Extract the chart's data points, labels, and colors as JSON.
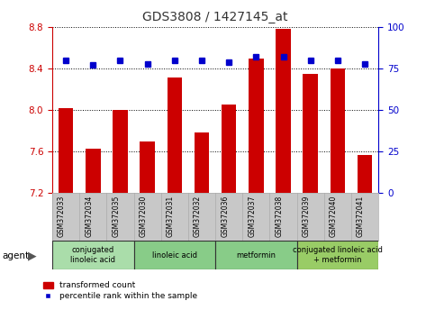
{
  "title": "GDS3808 / 1427145_at",
  "samples": [
    "GSM372033",
    "GSM372034",
    "GSM372035",
    "GSM372030",
    "GSM372031",
    "GSM372032",
    "GSM372036",
    "GSM372037",
    "GSM372038",
    "GSM372039",
    "GSM372040",
    "GSM372041"
  ],
  "bar_values": [
    8.02,
    7.63,
    8.0,
    7.7,
    8.31,
    7.78,
    8.05,
    8.5,
    8.78,
    8.35,
    8.4,
    7.57
  ],
  "percentile_values": [
    80,
    77,
    80,
    78,
    80,
    80,
    79,
    82,
    82,
    80,
    80,
    78
  ],
  "ylim_left": [
    7.2,
    8.8
  ],
  "ylim_right": [
    0,
    100
  ],
  "yticks_left": [
    7.2,
    7.6,
    8.0,
    8.4,
    8.8
  ],
  "yticks_right": [
    0,
    25,
    50,
    75,
    100
  ],
  "bar_color": "#cc0000",
  "dot_color": "#0000cc",
  "bar_bottom": 7.2,
  "groups": [
    {
      "label": "conjugated\nlinoleic acid",
      "start": 0,
      "end": 3,
      "color": "#aaddaa"
    },
    {
      "label": "linoleic acid",
      "start": 3,
      "end": 6,
      "color": "#88cc88"
    },
    {
      "label": "metformin",
      "start": 6,
      "end": 9,
      "color": "#88cc88"
    },
    {
      "label": "conjugated linoleic acid\n+ metformin",
      "start": 9,
      "end": 12,
      "color": "#99cc66"
    }
  ],
  "legend_bar_label": "transformed count",
  "legend_dot_label": "percentile rank within the sample",
  "agent_label": "agent",
  "grid_color": "#000000",
  "tick_color_left": "#cc0000",
  "tick_color_right": "#0000cc",
  "bg_color": "#ffffff"
}
